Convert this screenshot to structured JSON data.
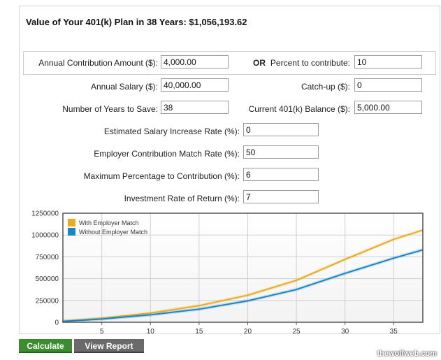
{
  "header": {
    "title": "Value of Your 401(k) Plan in 38 Years: $1,056,193.62"
  },
  "form": {
    "annual_contribution_label": "Annual Contribution Amount ($):",
    "annual_contribution_value": "4,000.00",
    "or_label": "OR",
    "percent_label": "Percent to contribute:",
    "percent_value": "10",
    "salary_label": "Annual Salary ($):",
    "salary_value": "40,000.00",
    "catchup_label": "Catch-up ($):",
    "catchup_value": "0",
    "years_label": "Number of Years to Save:",
    "years_value": "38",
    "balance_label": "Current 401(k) Balance ($):",
    "balance_value": "5,000.00",
    "salary_increase_label": "Estimated Salary Increase Rate (%):",
    "salary_increase_value": "0",
    "match_rate_label": "Employer Contribution Match Rate (%):",
    "match_rate_value": "50",
    "max_pct_label": "Maximum Percentage to Contribution (%):",
    "max_pct_value": "6",
    "return_label": "Investment Rate of Return (%):",
    "return_value": "7"
  },
  "buttons": {
    "calculate": "Calculate",
    "view_report": "View Report"
  },
  "watermark": "thewolfweb.com",
  "chart_data": {
    "type": "line",
    "title": "",
    "xlabel": "",
    "ylabel": "",
    "xlim": [
      1,
      38
    ],
    "ylim": [
      0,
      1250000
    ],
    "x_ticks": [
      5,
      10,
      15,
      20,
      25,
      30,
      35
    ],
    "y_ticks": [
      0,
      250000,
      500000,
      750000,
      1000000,
      1250000
    ],
    "grid": true,
    "legend_position": "top-left",
    "series": [
      {
        "name": "With Employer Match",
        "color": "#e8ac22",
        "x": [
          1,
          5,
          10,
          15,
          20,
          25,
          30,
          35,
          38
        ],
        "values": [
          12000,
          45000,
          105000,
          190000,
          310000,
          480000,
          720000,
          950000,
          1056194
        ]
      },
      {
        "name": "Without Employer Match",
        "color": "#1a86c5",
        "x": [
          1,
          5,
          10,
          15,
          20,
          25,
          30,
          35,
          38
        ],
        "values": [
          10000,
          37000,
          85000,
          150000,
          245000,
          375000,
          560000,
          735000,
          830000
        ]
      }
    ]
  }
}
